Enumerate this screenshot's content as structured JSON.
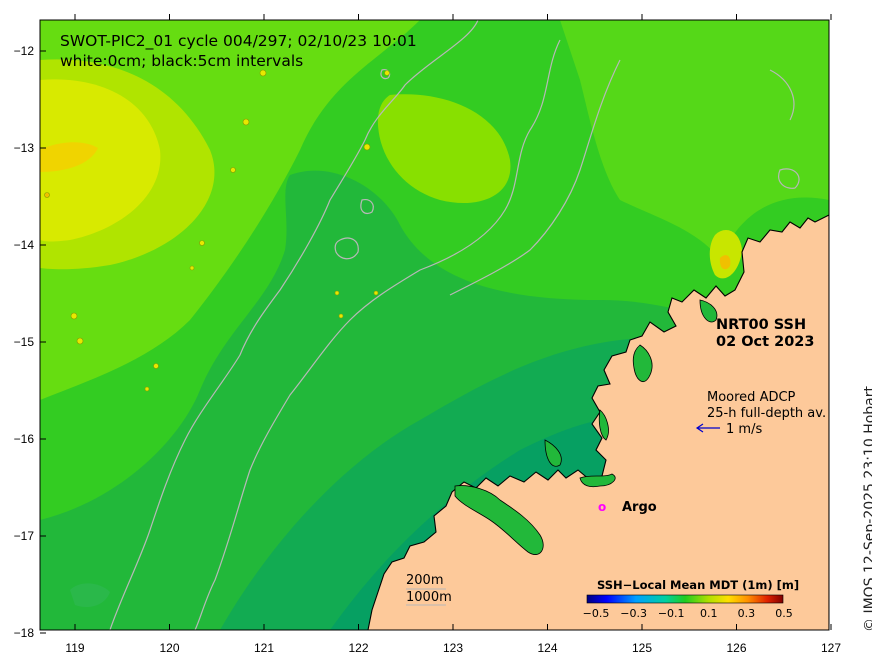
{
  "header": {
    "title": "SWOT-PIC2_01 cycle 004/297; 02/10/23 10:01",
    "contour_note": "white:0cm; black:5cm intervals"
  },
  "product": {
    "name": "NRT00 SSH",
    "date": "02 Oct 2023"
  },
  "adcp": {
    "line1": "Moored ADCP",
    "line2": "25-h full-depth av.",
    "scale_label": "1 m/s"
  },
  "argo": {
    "symbol": "o",
    "label": "Argo"
  },
  "bathymetry": {
    "label1": "200m",
    "label2": "1000m"
  },
  "axes": {
    "x_ticks": [
      "119",
      "120",
      "121",
      "122",
      "123",
      "124",
      "125",
      "126",
      "127"
    ],
    "y_ticks": [
      "−12",
      "−13",
      "−14",
      "−15",
      "−16",
      "−17",
      "−18"
    ]
  },
  "colorbar": {
    "title": "SSH−Local Mean MDT (1m) [m]",
    "tick_labels": [
      "−0.5",
      "−0.3",
      "−0.1",
      "0.1",
      "0.3",
      "0.5"
    ],
    "colors": [
      "#000080",
      "#0000dd",
      "#0050ff",
      "#00a0ff",
      "#00d8e0",
      "#00c070",
      "#20d020",
      "#90e000",
      "#e8e800",
      "#ffc000",
      "#ff7000",
      "#e02000",
      "#800000"
    ]
  },
  "credit": "© IMOS 12-Sep-2025 23:10 Hobart",
  "colors": {
    "ocean_base": "#33cc22",
    "land": "#fdc99a",
    "coast": "#000000",
    "bathy_line": "#b8b8b8",
    "argo": "#ff00ff",
    "adcp_arrow": "#0000cc"
  }
}
